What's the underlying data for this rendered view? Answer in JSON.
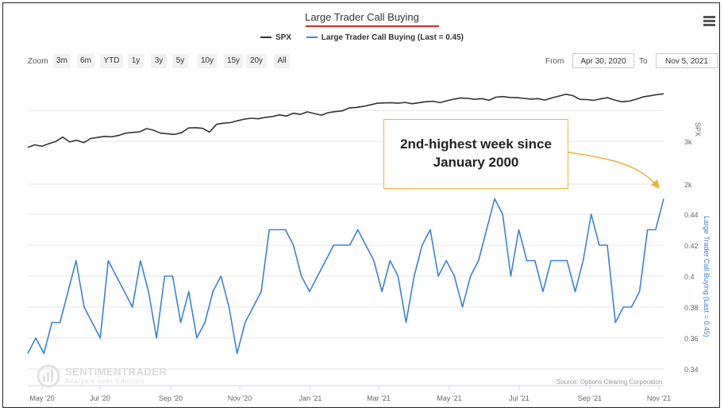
{
  "title": "Large Trader Call Buying",
  "menu": {
    "icon": "hamburger-menu-icon"
  },
  "legend": [
    {
      "label": "SPX",
      "color": "#333333"
    },
    {
      "label": "Large Trader Call Buying (Last = 0.45)",
      "color": "#3b82d6"
    }
  ],
  "zoom": {
    "label": "Zoom",
    "buttons": [
      "3m",
      "6m",
      "YTD",
      "1y",
      "3y",
      "5y",
      "10y",
      "15y",
      "20y",
      "All"
    ]
  },
  "range": {
    "from_label": "From",
    "from_value": "Apr 30, 2020",
    "to_label": "To",
    "to_value": "Nov 5, 2021"
  },
  "callout": {
    "line1": "2nd-highest week since",
    "line2": "January 2000",
    "arrow_color": "#f0b23a"
  },
  "watermark": {
    "name": "SENTIMENTRADER",
    "tagline": "Analysis over Emotion",
    "icon": "sentimentrader-logo-icon"
  },
  "source": "Source: Options Clearing Corporation",
  "chart_data": {
    "type": "line",
    "title": "Large Trader Call Buying",
    "x_ticks": [
      "May '20",
      "Jul '20",
      "Sep '20",
      "Nov '20",
      "Jan '21",
      "Mar '21",
      "May '21",
      "Jul '21",
      "Sep '21",
      "Nov '21"
    ],
    "x_range": [
      "2020-04-30",
      "2021-11-05"
    ],
    "grid": true,
    "legend_position": "top-center",
    "y_axes": [
      {
        "name": "SPX",
        "label": "SPX",
        "ticks": [
          "3k",
          "2k"
        ],
        "tick_values": [
          3000,
          2000
        ],
        "range": [
          1000,
          4800
        ],
        "position": "right",
        "scale": "log"
      },
      {
        "name": "Large Trader Call Buying (Last = 0.45)",
        "label": "Large Trader Call Buying (Last = 0.45)",
        "ticks": [
          "0.44",
          "0.42",
          "0.4",
          "0.38",
          "0.36",
          "0.34"
        ],
        "tick_values": [
          0.44,
          0.42,
          0.4,
          0.38,
          0.36,
          0.34
        ],
        "range": [
          0.335,
          0.445
        ],
        "position": "right",
        "scale": "linear"
      }
    ],
    "series": [
      {
        "name": "SPX",
        "color": "#333333",
        "values": [
          2830,
          2900,
          2860,
          2930,
          2990,
          3120,
          2980,
          3030,
          2960,
          3080,
          3110,
          3140,
          3130,
          3170,
          3240,
          3260,
          3280,
          3380,
          3330,
          3240,
          3220,
          3200,
          3250,
          3400,
          3410,
          3390,
          3270,
          3520,
          3560,
          3580,
          3640,
          3700,
          3730,
          3710,
          3760,
          3790,
          3850,
          3810,
          3910,
          3870,
          3960,
          3900,
          3840,
          3930,
          3970,
          4000,
          4110,
          4130,
          4170,
          4230,
          4300,
          4310,
          4320,
          4300,
          4330,
          4280,
          4320,
          4360,
          4380,
          4320,
          4400,
          4470,
          4520,
          4500,
          4460,
          4490,
          4420,
          4550,
          4580,
          4540,
          4530,
          4500,
          4470,
          4490,
          4430,
          4520,
          4600,
          4680,
          4620,
          4460,
          4450,
          4420,
          4480,
          4530,
          4430,
          4360,
          4380,
          4460,
          4560,
          4610,
          4660,
          4700
        ]
      },
      {
        "name": "Large Trader Call Buying (Last = 0.45)",
        "color": "#3b82d6",
        "values": [
          0.35,
          0.36,
          0.35,
          0.37,
          0.37,
          0.39,
          0.41,
          0.38,
          0.37,
          0.36,
          0.41,
          0.4,
          0.39,
          0.38,
          0.41,
          0.39,
          0.36,
          0.4,
          0.4,
          0.37,
          0.39,
          0.36,
          0.37,
          0.39,
          0.4,
          0.38,
          0.35,
          0.37,
          0.38,
          0.39,
          0.43,
          0.43,
          0.43,
          0.42,
          0.4,
          0.39,
          0.4,
          0.41,
          0.42,
          0.42,
          0.42,
          0.43,
          0.42,
          0.41,
          0.39,
          0.41,
          0.4,
          0.37,
          0.4,
          0.42,
          0.43,
          0.4,
          0.41,
          0.4,
          0.38,
          0.4,
          0.41,
          0.43,
          0.45,
          0.44,
          0.4,
          0.43,
          0.41,
          0.41,
          0.39,
          0.41,
          0.41,
          0.41,
          0.39,
          0.41,
          0.44,
          0.42,
          0.42,
          0.37,
          0.38,
          0.38,
          0.39,
          0.43,
          0.43,
          0.45
        ]
      }
    ],
    "annotations": [
      "2nd-highest week since January 2000",
      "Source: Options Clearing Corporation"
    ]
  }
}
